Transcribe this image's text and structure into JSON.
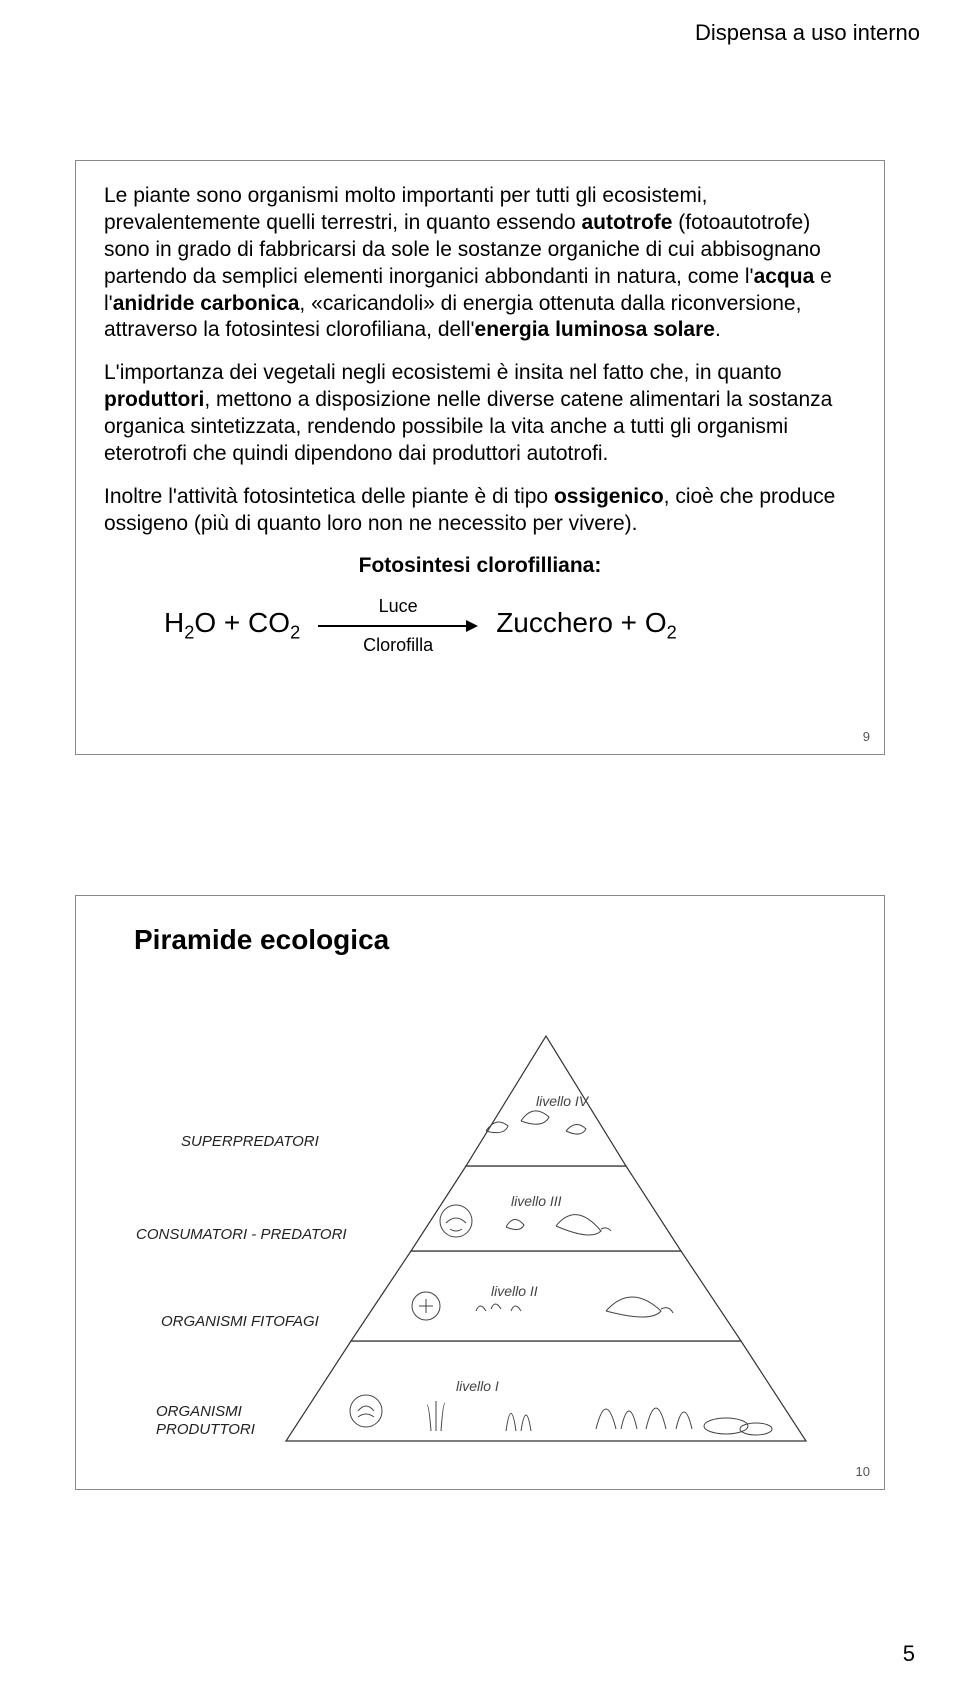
{
  "header": {
    "text": "Dispensa a uso interno"
  },
  "slide1": {
    "para1_html": "Le piante sono organismi molto importanti per tutti gli ecosistemi, prevalentemente quelli terrestri, in quanto essendo <b>autotrofe</b> (fotoautotrofe) sono in grado di fabbricarsi da sole le sostanze organiche di cui abbisognano partendo da semplici elementi inorganici abbondanti in natura, come l'<b>acqua</b> e l'<b>anidride carbonica</b>, «caricandoli» di energia ottenuta dalla riconversione, attraverso la fotosintesi clorofiliana, dell'<b>energia luminosa solare</b>.",
    "para2_html": "L'importanza dei vegetali negli ecosistemi è insita nel fatto che, in quanto <b>produttori</b>, mettono a disposizione nelle diverse catene alimentari la sostanza organica sintetizzata, rendendo possibile la vita anche a tutti gli organismi eterotrofi che quindi dipendono dai produttori autotrofi.",
    "para3_html": "Inoltre l'attività fotosintetica delle piante è di tipo <b>ossigenico</b>, cioè che produce ossigeno (più di quanto loro non ne necessito per vivere).",
    "eq_title": "Fotosintesi clorofilliana:",
    "eq_left_html": "H<sub>2</sub>O + CO<sub>2</sub>",
    "eq_top": "Luce",
    "eq_bottom": "Clorofilla",
    "eq_right_html": "Zucchero + O<sub>2</sub>",
    "slide_num": "9"
  },
  "slide2": {
    "title": "Piramide ecologica",
    "levels": [
      {
        "label": "livello IV",
        "category": "SUPERPREDATORI"
      },
      {
        "label": "livello III",
        "category": "CONSUMATORI - PREDATORI"
      },
      {
        "label": "livello II",
        "category": "ORGANISMI FITOFAGI"
      },
      {
        "label": "livello I",
        "category": "ORGANISMI PRODUTTORI"
      }
    ],
    "slide_num": "10",
    "colors": {
      "line": "#333333",
      "fill": "#ffffff"
    }
  },
  "footer": {
    "page": "5"
  }
}
